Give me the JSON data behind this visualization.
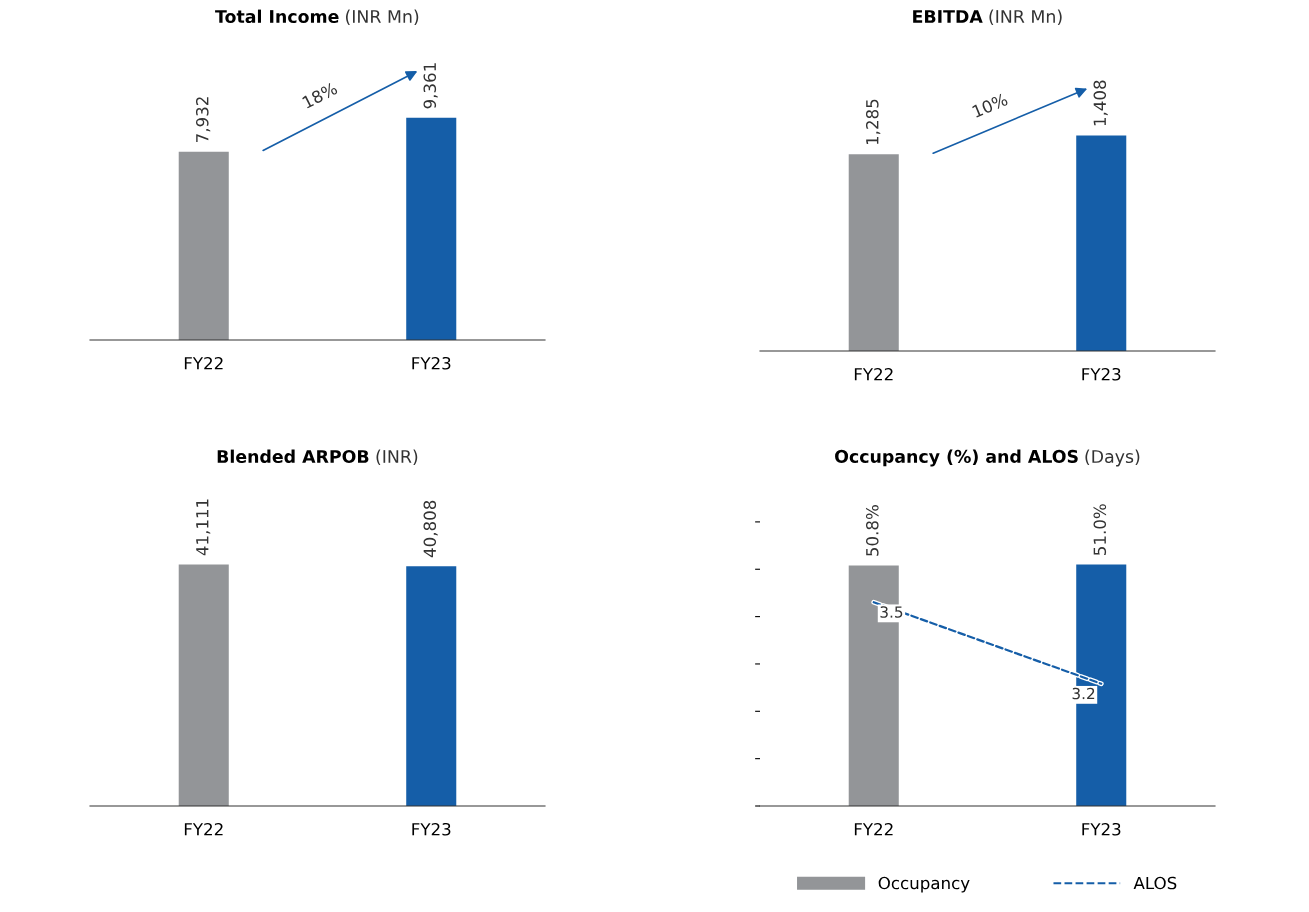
{
  "chart_data": [
    {
      "type": "bar",
      "title": "Total Income",
      "subtitle": "(INR Mn)",
      "categories": [
        "FY22",
        "FY23"
      ],
      "values": [
        7932,
        9361
      ],
      "colors": [
        "#939598",
        "#155ea8"
      ],
      "value_labels": [
        "7,932",
        "9,361"
      ],
      "tick_labels": "x",
      "annotations": [
        "18%"
      ]
    },
    {
      "type": "bar",
      "title": "EBITDA",
      "subtitle": "(INR Mn)",
      "categories": [
        "FY22",
        "FY23"
      ],
      "values": [
        1285,
        1408
      ],
      "colors": [
        "#939598",
        "#155ea8"
      ],
      "value_labels": [
        "1,285",
        "1,408"
      ],
      "tick_labels": "x",
      "annotations": [
        "10%"
      ]
    },
    {
      "type": "bar",
      "title": "Blended ARPOB",
      "subtitle": "(INR)",
      "categories": [
        "FY22",
        "FY23"
      ],
      "values": [
        41111,
        40808
      ],
      "colors": [
        "#939598",
        "#155ea8"
      ],
      "value_labels": [
        "41,111",
        "40,808"
      ],
      "tick_labels": "x"
    },
    {
      "type": "bar",
      "title": "Occupancy (%) and ALOS",
      "subtitle": "(Days)",
      "categories": [
        "FY22",
        "FY23"
      ],
      "tick_labels": "x",
      "legend": "bottom",
      "series": [
        {
          "name": "Occupancy",
          "type": "bar",
          "color": "#939598",
          "colors": [
            "#939598",
            "#155ea8"
          ],
          "values": [
            50.8,
            51.0
          ],
          "value_labels": [
            "50.8%",
            "51.0%"
          ]
        },
        {
          "name": "ALOS",
          "type": "line",
          "axis": "y2",
          "color": "#155ea8",
          "line_style": "dashed",
          "values": [
            3.5,
            3.2
          ],
          "value_labels": [
            "3.5",
            "3.2"
          ]
        }
      ]
    }
  ]
}
